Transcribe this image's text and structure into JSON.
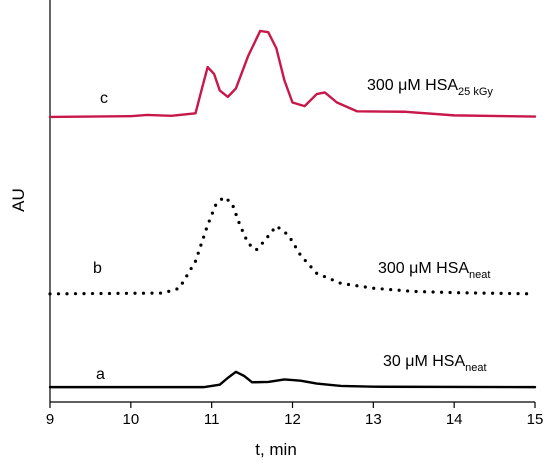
{
  "chart_data": {
    "type": "line",
    "xlabel": "t, min",
    "ylabel": "AU",
    "xlim": [
      9,
      15
    ],
    "xticks": [
      9,
      10,
      11,
      12,
      13,
      14,
      15
    ],
    "ylim": [
      0,
      100
    ],
    "series": [
      {
        "name": "a",
        "color": "#000000",
        "dash": "solid",
        "annotation": {
          "text": "30 μM HSA",
          "sub": "neat"
        },
        "x": [
          9,
          10.9,
          11.1,
          11.2,
          11.3,
          11.4,
          11.5,
          11.7,
          11.9,
          12.1,
          12.3,
          12.6,
          13,
          15
        ],
        "values": [
          3.7,
          3.7,
          4.3,
          6.0,
          7.5,
          6.5,
          4.9,
          5.0,
          5.6,
          5.3,
          4.6,
          4.0,
          3.8,
          3.7
        ]
      },
      {
        "name": "b",
        "color": "#000000",
        "dash": "dotted",
        "annotation": {
          "text": "300 μM HSA",
          "sub": "neat"
        },
        "x": [
          9,
          10.4,
          10.6,
          10.8,
          10.95,
          11.05,
          11.15,
          11.25,
          11.35,
          11.45,
          11.55,
          11.65,
          11.8,
          11.95,
          12.1,
          12.3,
          12.6,
          13,
          13.5,
          14,
          15
        ],
        "values": [
          26.9,
          27.1,
          28.3,
          35,
          44,
          49,
          51,
          49.5,
          44,
          39.5,
          37.8,
          40,
          43.8,
          41.5,
          36.5,
          32,
          29.5,
          28.3,
          27.5,
          27.2,
          26.9
        ]
      },
      {
        "name": "c",
        "color": "#c8174a",
        "dash": "solid",
        "annotation": {
          "text": "300 μM HSA",
          "sub": "25 kGy"
        },
        "x": [
          9,
          10,
          10.2,
          10.5,
          10.8,
          10.88,
          10.95,
          11.03,
          11.1,
          11.2,
          11.3,
          11.45,
          11.6,
          11.7,
          11.8,
          11.9,
          12.0,
          12.15,
          12.3,
          12.4,
          12.55,
          12.8,
          13.4,
          14,
          15
        ],
        "values": [
          70.9,
          71.1,
          71.4,
          71.2,
          71.8,
          78,
          83.3,
          81.6,
          77.5,
          75.9,
          78,
          86,
          92.3,
          92,
          88,
          80,
          74.5,
          73.6,
          76.6,
          77,
          74.5,
          72.3,
          72.2,
          71.3,
          71
        ]
      }
    ]
  }
}
